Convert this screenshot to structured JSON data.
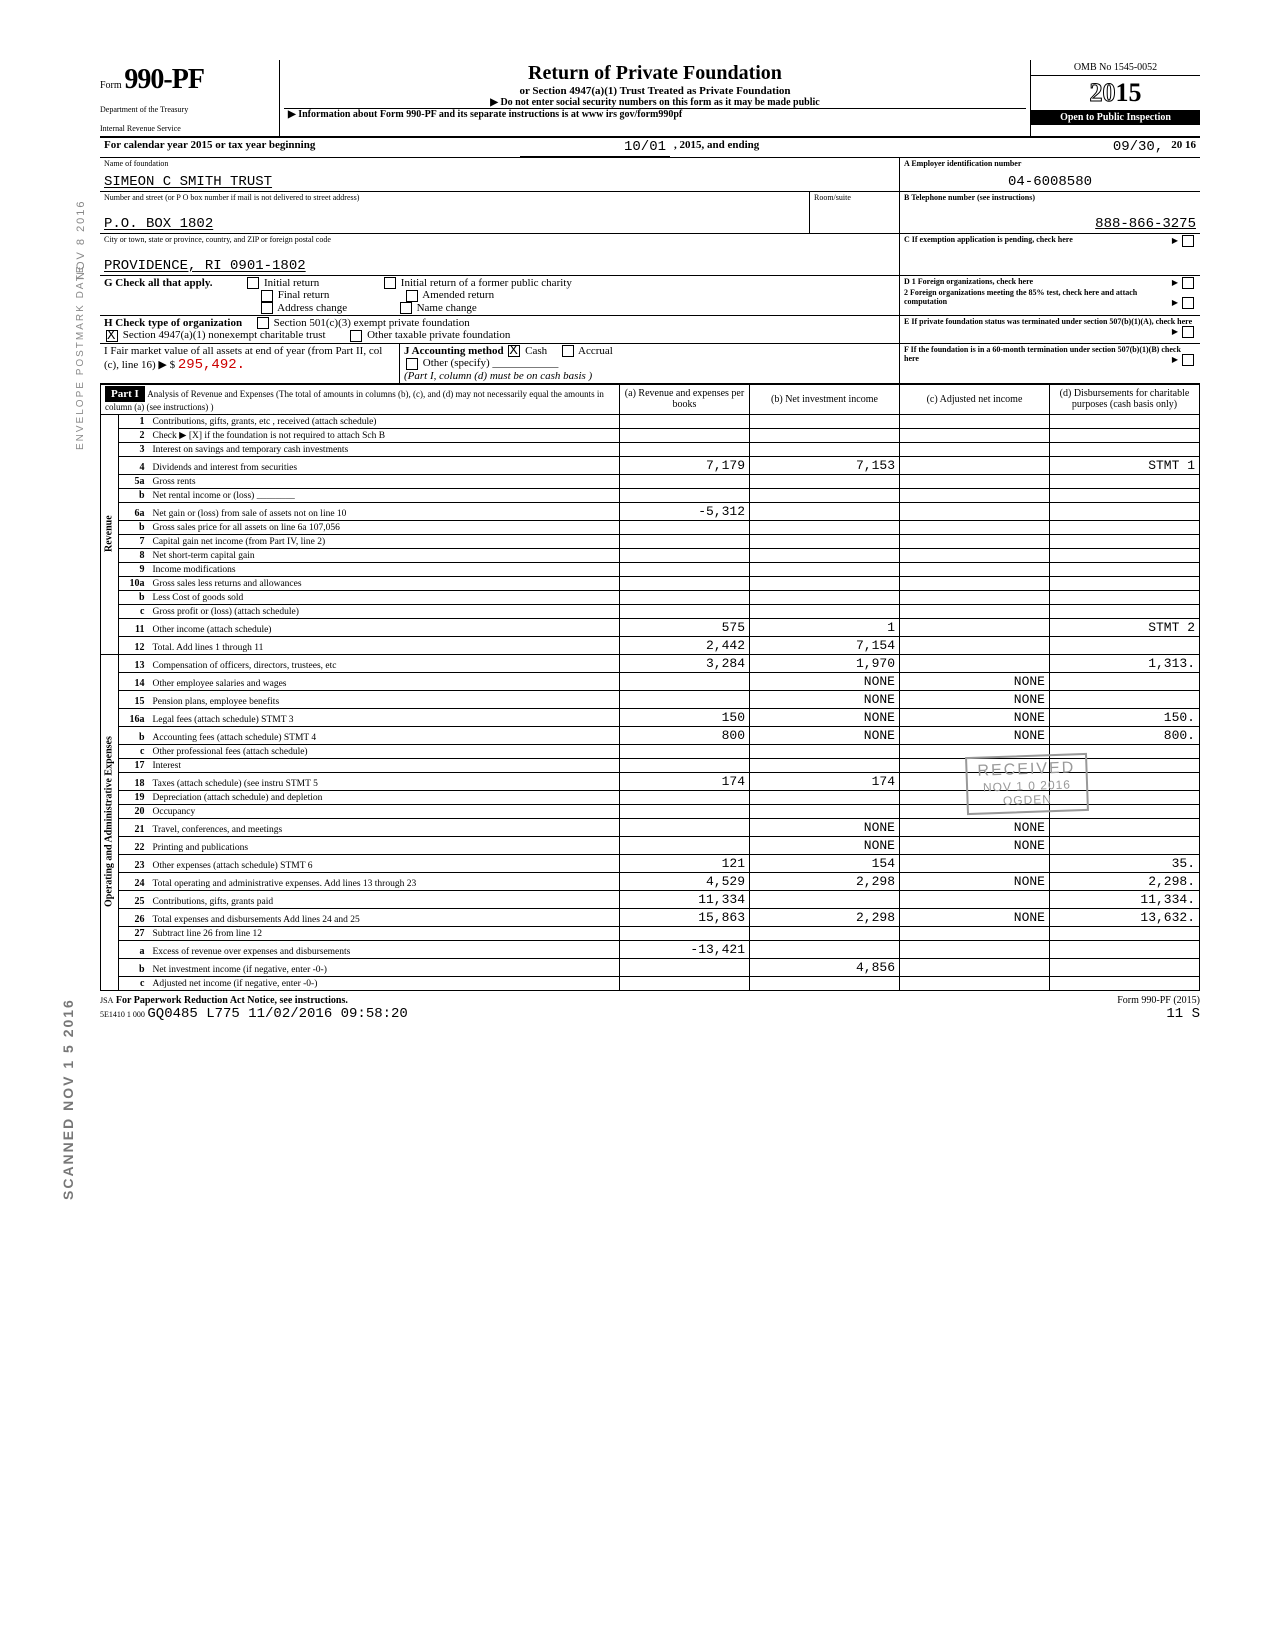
{
  "stamps": {
    "envelope": "ENVELOPE POSTMARK DATE",
    "date1": "NOV 8 2016",
    "scanned": "SCANNED NOV 1 5 2016"
  },
  "header": {
    "form_word": "Form",
    "form_number": "990-PF",
    "dept1": "Department of the Treasury",
    "dept2": "Internal Revenue Service",
    "title": "Return of Private Foundation",
    "subtitle": "or Section 4947(a)(1) Trust Treated as Private Foundation",
    "subtitle2": "▶ Do not enter social security numbers on this form as it may be made public",
    "info": "▶ Information about Form 990-PF and its separate instructions is at www irs gov/form990pf",
    "omb": "OMB No 1545-0052",
    "year_outline": "20",
    "year_solid": "15",
    "open": "Open to Public Inspection"
  },
  "taxyear": {
    "label": "For calendar year 2015 or tax year beginning",
    "begin": "10/01",
    "mid": ", 2015, and ending",
    "end": "09/30,",
    "end_year": "20 16"
  },
  "id": {
    "name_label": "Name of foundation",
    "name": "SIMEON C SMITH TRUST",
    "addr_label": "Number and street (or P O  box number if mail is not delivered to street address)",
    "addr": "P.O. BOX 1802",
    "city_label": "City or town, state or province, country, and ZIP or foreign postal code",
    "city": "PROVIDENCE, RI 0901-1802",
    "room_label": "Room/suite",
    "a_label": "A  Employer identification number",
    "ein": "04-6008580",
    "b_label": "B  Telephone number (see instructions)",
    "phone": "888-866-3275",
    "c_label": "C  If exemption application is pending, check here",
    "d1": "D  1 Foreign organizations, check here",
    "d2": "2 Foreign organizations meeting the 85% test, check here and attach computation",
    "e": "E  If private foundation status was terminated under section 507(b)(1)(A), check here",
    "f": "F  If the foundation is in a 60-month termination under section 507(b)(1)(B) check here"
  },
  "checks": {
    "g_label": "G Check all that apply.",
    "g_items": [
      "Initial return",
      "Final return",
      "Address change",
      "Initial return of a former public charity",
      "Amended return",
      "Name change"
    ],
    "h_label": "H Check type of organization",
    "h1": "Section 501(c)(3) exempt private foundation",
    "h2": "Section 4947(a)(1) nonexempt charitable trust",
    "h3": "Other taxable private foundation",
    "i_label": "I  Fair market value of all assets at end of year (from Part II, col (c), line 16) ▶ $",
    "i_val": "295,492.",
    "j_label": "J Accounting method",
    "j1": "Cash",
    "j2": "Accrual",
    "j_other": "Other (specify)",
    "j_note": "(Part I, column (d) must be on cash basis )"
  },
  "part1": {
    "label": "Part I",
    "title": "Analysis of Revenue and Expenses (The total of amounts in columns (b), (c), and (d) may not necessarily equal the amounts in column (a) (see instructions) )",
    "col_a": "(a) Revenue and expenses per books",
    "col_b": "(b) Net investment income",
    "col_c": "(c) Adjusted net income",
    "col_d": "(d) Disbursements for charitable purposes (cash basis only)",
    "vert_revenue": "Revenue",
    "vert_expenses": "Operating and Administrative Expenses"
  },
  "rows": [
    {
      "n": "1",
      "d": "Contributions, gifts, grants, etc , received (attach schedule)"
    },
    {
      "n": "2",
      "d": "Check ▶ [X] if the foundation is not required to attach Sch B"
    },
    {
      "n": "3",
      "d": "Interest on savings and temporary cash investments"
    },
    {
      "n": "4",
      "d": "Dividends and interest from securities",
      "a": "7,179",
      "b": "7,153",
      "d4": "STMT 1"
    },
    {
      "n": "5a",
      "d": "Gross rents"
    },
    {
      "n": "b",
      "d": "Net rental income or (loss) ________"
    },
    {
      "n": "6a",
      "d": "Net gain or (loss) from sale of assets not on line 10",
      "a": "-5,312"
    },
    {
      "n": "b",
      "d": "Gross sales price for all assets on line 6a   107,056"
    },
    {
      "n": "7",
      "d": "Capital gain net income (from Part IV, line 2)"
    },
    {
      "n": "8",
      "d": "Net short-term capital gain"
    },
    {
      "n": "9",
      "d": "Income modifications"
    },
    {
      "n": "10a",
      "d": "Gross sales less returns and allowances"
    },
    {
      "n": "b",
      "d": "Less Cost of goods sold"
    },
    {
      "n": "c",
      "d": "Gross profit or (loss) (attach schedule)"
    },
    {
      "n": "11",
      "d": "Other income (attach schedule)",
      "a": "575",
      "b": "1",
      "d4": "STMT 2"
    },
    {
      "n": "12",
      "d": "Total. Add lines 1 through 11",
      "a": "2,442",
      "b": "7,154"
    },
    {
      "n": "13",
      "d": "Compensation of officers, directors, trustees, etc",
      "a": "3,284",
      "b": "1,970",
      "d4": "1,313."
    },
    {
      "n": "14",
      "d": "Other employee salaries and wages",
      "b": "NONE",
      "c": "NONE"
    },
    {
      "n": "15",
      "d": "Pension plans, employee benefits",
      "b": "NONE",
      "c": "NONE"
    },
    {
      "n": "16a",
      "d": "Legal fees (attach schedule)   STMT 3",
      "a": "150",
      "b": "NONE",
      "c": "NONE",
      "d4": "150."
    },
    {
      "n": "b",
      "d": "Accounting fees (attach schedule) STMT 4",
      "a": "800",
      "b": "NONE",
      "c": "NONE",
      "d4": "800."
    },
    {
      "n": "c",
      "d": "Other professional fees (attach schedule)"
    },
    {
      "n": "17",
      "d": "Interest"
    },
    {
      "n": "18",
      "d": "Taxes (attach schedule) (see instru STMT 5",
      "a": "174",
      "b": "174"
    },
    {
      "n": "19",
      "d": "Depreciation (attach schedule) and depletion"
    },
    {
      "n": "20",
      "d": "Occupancy"
    },
    {
      "n": "21",
      "d": "Travel, conferences, and meetings",
      "b": "NONE",
      "c": "NONE"
    },
    {
      "n": "22",
      "d": "Printing and publications",
      "b": "NONE",
      "c": "NONE"
    },
    {
      "n": "23",
      "d": "Other expenses (attach schedule) STMT 6",
      "a": "121",
      "b": "154",
      "d4": "35."
    },
    {
      "n": "24",
      "d": "Total operating and administrative expenses. Add lines 13 through 23",
      "a": "4,529",
      "b": "2,298",
      "c": "NONE",
      "d4": "2,298."
    },
    {
      "n": "25",
      "d": "Contributions, gifts, grants paid",
      "a": "11,334",
      "d4": "11,334."
    },
    {
      "n": "26",
      "d": "Total expenses and disbursements Add lines 24 and 25",
      "a": "15,863",
      "b": "2,298",
      "c": "NONE",
      "d4": "13,632."
    },
    {
      "n": "27",
      "d": "Subtract line 26 from line 12"
    },
    {
      "n": "a",
      "d": "Excess of revenue over expenses and disbursements",
      "a": "-13,421"
    },
    {
      "n": "b",
      "d": "Net investment income (if negative, enter -0-)",
      "b": "4,856"
    },
    {
      "n": "c",
      "d": "Adjusted net income (if negative, enter -0-)"
    }
  ],
  "received": {
    "top": "RECEIVED",
    "mid": "NOV 1 0 2016",
    "bot": "OGDEN"
  },
  "footer": {
    "jsa": "JSA",
    "paperwork": "For Paperwork Reduction Act Notice, see instructions.",
    "seq": "5E1410 1 000",
    "code": "GQ0485 L775 11/02/2016 09:58:20",
    "form": "Form 990-PF (2015)",
    "page": "11    S"
  }
}
